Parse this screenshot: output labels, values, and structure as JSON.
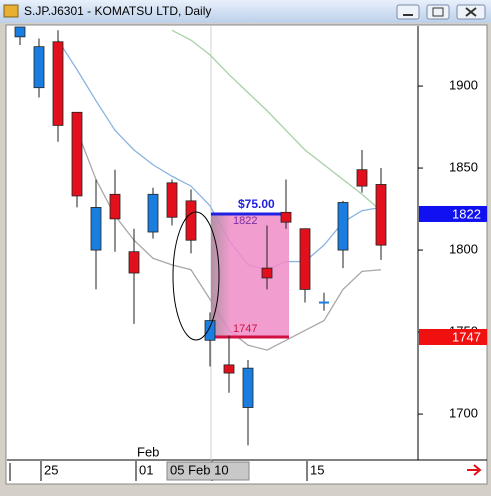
{
  "window_title": "S.JP.J6301 - KOMATSU LTD, Daily",
  "chart_data": {
    "type": "candlestick",
    "categories": [
      null,
      "25",
      null,
      null,
      null,
      null,
      "01",
      null,
      null,
      null,
      "05 Feb 10",
      null,
      null,
      null,
      null,
      "15",
      null,
      null,
      null,
      null
    ],
    "month_label": "Feb",
    "open": [
      1930,
      1899,
      1927,
      1884,
      1800,
      1834,
      1799,
      1811,
      1841,
      1830,
      1745,
      1730,
      1704,
      1789,
      1823,
      1813,
      1768,
      1800,
      1849,
      1840
    ],
    "high": [
      1936,
      1929,
      1934,
      1884,
      1843,
      1849,
      1813,
      1838,
      1843,
      1837,
      1762,
      1748,
      1733,
      1815,
      1843,
      1813,
      1774,
      1830,
      1861,
      1850
    ],
    "low": [
      1925,
      1893,
      1866,
      1826,
      1776,
      1799,
      1755,
      1807,
      1815,
      1798,
      1729,
      1713,
      1681,
      1776,
      1813,
      1768,
      1763,
      1789,
      1835,
      1794
    ],
    "close": [
      1936,
      1924,
      1876,
      1833,
      1826,
      1819,
      1786,
      1834,
      1820,
      1806,
      1757,
      1725,
      1728,
      1783,
      1817,
      1776,
      1768,
      1829,
      1839,
      1803
    ],
    "up_color": "#1a7ee0",
    "down_color": "#e2101c",
    "overlays": [
      {
        "color": "#8ab4e0",
        "values": [
          null,
          null,
          1928,
          1910,
          1891,
          1873,
          1861,
          1852,
          1845,
          1839,
          1827,
          1806,
          1791,
          1788,
          1793,
          1793,
          1803,
          1817,
          1824,
          1826
        ]
      },
      {
        "color": "#a8a8a8",
        "values": [
          null,
          null,
          null,
          1873,
          1843,
          1821,
          1806,
          1795,
          1791,
          1788,
          1770,
          1751,
          1742,
          1739,
          1745,
          1751,
          1757,
          1776,
          1787,
          1788
        ]
      },
      {
        "color": "#a8d0a8",
        "values": [
          null,
          null,
          null,
          null,
          null,
          null,
          null,
          null,
          1934,
          1928,
          1919,
          1907,
          1896,
          1885,
          1873,
          1861,
          1852,
          1843,
          1834,
          1824
        ]
      }
    ],
    "ylim": [
      1672,
      1936
    ],
    "yticks": [
      1700,
      1750,
      1800,
      1850,
      1900
    ],
    "measure": {
      "high": 1822,
      "low": 1747,
      "label": "$75.00"
    }
  }
}
